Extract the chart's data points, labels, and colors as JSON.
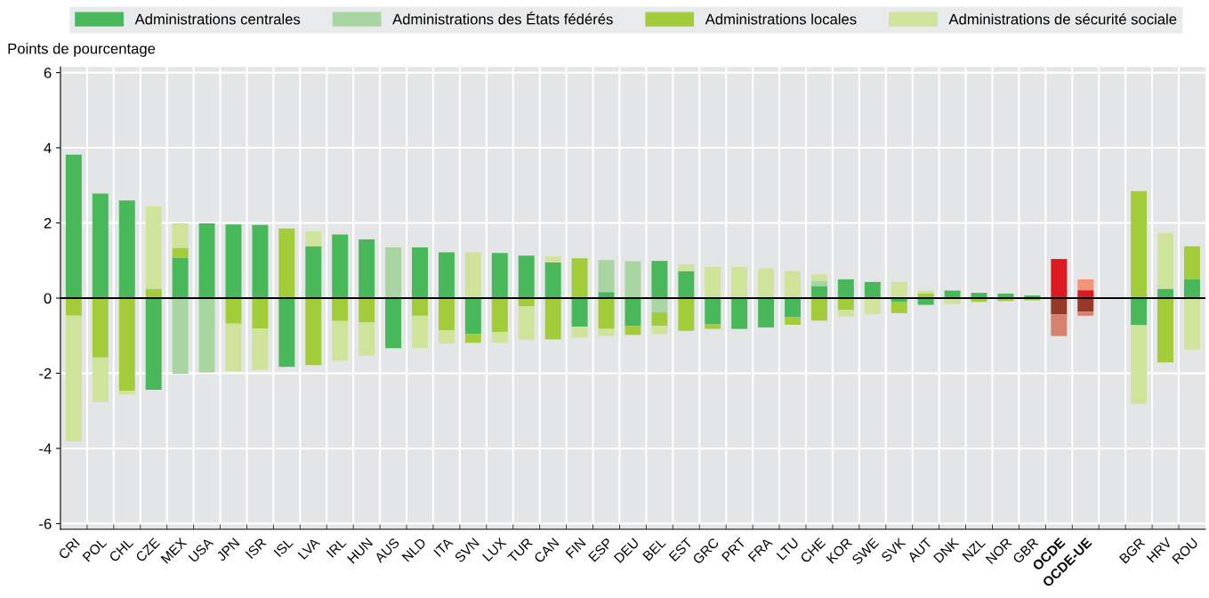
{
  "chart_data": {
    "type": "bar",
    "stacked": true,
    "ylabel": "Points de pourcentage",
    "categories": [
      "CRI",
      "POL",
      "CHL",
      "CZE",
      "MEX",
      "USA",
      "JPN",
      "ISR",
      "ISL",
      "LVA",
      "IRL",
      "HUN",
      "AUS",
      "NLD",
      "ITA",
      "SVN",
      "LUX",
      "TUR",
      "CAN",
      "FIN",
      "ESP",
      "DEU",
      "BEL",
      "EST",
      "GRC",
      "PRT",
      "FRA",
      "LTU",
      "CHE",
      "KOR",
      "SWE",
      "SVK",
      "AUT",
      "DNK",
      "NZL",
      "NOR",
      "GBR",
      "OCDE",
      "OCDE-UE",
      null,
      "BGR",
      "HRV",
      "ROU"
    ],
    "series": [
      {
        "name": "Administrations centrales",
        "color": "#48b85a",
        "colors": [
          "#48b85a",
          "#48b85a",
          "#48b85a",
          "#48b85a",
          "#48b85a",
          "#48b85a",
          "#48b85a",
          "#48b85a",
          "#48b85a",
          "#48b85a",
          "#48b85a",
          "#48b85a",
          "#48b85a",
          "#48b85a",
          "#48b85a",
          "#48b85a",
          "#48b85a",
          "#48b85a",
          "#48b85a",
          "#48b85a",
          "#48b85a",
          "#48b85a",
          "#48b85a",
          "#48b85a",
          "#48b85a",
          "#48b85a",
          "#48b85a",
          "#48b85a",
          "#48b85a",
          "#48b85a",
          "#48b85a",
          "#48b85a",
          "#48b85a",
          "#48b85a",
          "#48b85a",
          "#48b85a",
          "#48b85a",
          "#dd1a21",
          "#dd1a21",
          "#48b85a",
          "#48b85a",
          "#48b85a",
          "#48b85a"
        ],
        "values": [
          3.82,
          2.78,
          2.6,
          -2.44,
          1.08,
          1.99,
          1.96,
          1.95,
          -1.83,
          1.38,
          1.69,
          1.56,
          -1.33,
          1.35,
          1.22,
          -0.95,
          1.2,
          1.13,
          0.95,
          -0.76,
          0.16,
          -0.74,
          0.99,
          0.72,
          -0.7,
          -0.82,
          -0.78,
          -0.51,
          0.32,
          0.5,
          0.43,
          -0.1,
          -0.18,
          0.2,
          0.14,
          0.12,
          0.07,
          1.04,
          0.21,
          null,
          -0.72,
          0.25,
          0.5
        ]
      },
      {
        "name": "Administrations des États fédérés",
        "color": "#a8d5a2",
        "colors": [
          "#a8d5a2",
          "#a8d5a2",
          "#a8d5a2",
          "#a8d5a2",
          "#a8d5a2",
          "#a8d5a2",
          "#a8d5a2",
          "#a8d5a2",
          "#a8d5a2",
          "#a8d5a2",
          "#a8d5a2",
          "#a8d5a2",
          "#a8d5a2",
          "#a8d5a2",
          "#a8d5a2",
          "#a8d5a2",
          "#a8d5a2",
          "#a8d5a2",
          "#a8d5a2",
          "#a8d5a2",
          "#a8d5a2",
          "#a8d5a2",
          "#a8d5a2",
          "#a8d5a2",
          "#a8d5a2",
          "#a8d5a2",
          "#a8d5a2",
          "#a8d5a2",
          "#a8d5a2",
          "#a8d5a2",
          "#a8d5a2",
          "#a8d5a2",
          "#a8d5a2",
          "#a8d5a2",
          "#a8d5a2",
          "#a8d5a2",
          "#a8d5a2",
          "#f4957a",
          "#f4957a",
          "#a8d5a2",
          "#a8d5a2",
          "#a8d5a2",
          "#a8d5a2"
        ],
        "values": [
          null,
          null,
          null,
          null,
          -2.01,
          -1.98,
          null,
          null,
          null,
          null,
          null,
          null,
          1.35,
          null,
          null,
          null,
          null,
          null,
          null,
          null,
          0.85,
          0.98,
          -0.38,
          null,
          null,
          null,
          null,
          null,
          0.13,
          null,
          null,
          null,
          null,
          null,
          null,
          null,
          null,
          null,
          0.29,
          null,
          null,
          null,
          null
        ]
      },
      {
        "name": "Administrations locales",
        "color": "#a3cc3a",
        "colors": [
          "#a3cc3a",
          "#a3cc3a",
          "#a3cc3a",
          "#a3cc3a",
          "#a3cc3a",
          "#a3cc3a",
          "#a3cc3a",
          "#a3cc3a",
          "#a3cc3a",
          "#a3cc3a",
          "#a3cc3a",
          "#a3cc3a",
          "#a3cc3a",
          "#a3cc3a",
          "#a3cc3a",
          "#a3cc3a",
          "#a3cc3a",
          "#a3cc3a",
          "#a3cc3a",
          "#a3cc3a",
          "#a3cc3a",
          "#a3cc3a",
          "#a3cc3a",
          "#a3cc3a",
          "#a3cc3a",
          "#a3cc3a",
          "#a3cc3a",
          "#a3cc3a",
          "#a3cc3a",
          "#a3cc3a",
          "#a3cc3a",
          "#a3cc3a",
          "#a3cc3a",
          "#a3cc3a",
          "#a3cc3a",
          "#a3cc3a",
          "#a3cc3a",
          "#953a28",
          "#953a28",
          "#a3cc3a",
          "#a3cc3a",
          "#a3cc3a",
          "#a3cc3a"
        ],
        "values": [
          -0.47,
          -1.58,
          -2.47,
          0.25,
          0.26,
          null,
          -0.68,
          -0.81,
          1.85,
          -1.78,
          -0.61,
          -0.65,
          null,
          -0.47,
          -0.86,
          -0.24,
          -0.9,
          -0.22,
          -1.1,
          1.06,
          -0.82,
          -0.24,
          -0.36,
          -0.87,
          -0.12,
          null,
          null,
          -0.2,
          -0.6,
          -0.31,
          null,
          -0.3,
          0.13,
          null,
          -0.1,
          -0.08,
          -0.06,
          -0.43,
          -0.36,
          null,
          2.85,
          -1.71,
          0.88
        ]
      },
      {
        "name": "Administrations de sécurité sociale",
        "color": "#d0e39a",
        "colors": [
          "#d0e39a",
          "#d0e39a",
          "#d0e39a",
          "#d0e39a",
          "#d0e39a",
          "#d0e39a",
          "#d0e39a",
          "#d0e39a",
          "#d0e39a",
          "#d0e39a",
          "#d0e39a",
          "#d0e39a",
          "#d0e39a",
          "#d0e39a",
          "#d0e39a",
          "#d0e39a",
          "#d0e39a",
          "#d0e39a",
          "#d0e39a",
          "#d0e39a",
          "#d0e39a",
          "#d0e39a",
          "#d0e39a",
          "#d0e39a",
          "#d0e39a",
          "#d0e39a",
          "#d0e39a",
          "#d0e39a",
          "#d0e39a",
          "#d0e39a",
          "#d0e39a",
          "#d0e39a",
          "#d0e39a",
          "#d0e39a",
          "#d0e39a",
          "#d0e39a",
          "#d0e39a",
          "#d78270",
          "#d78270",
          "#d0e39a",
          "#d0e39a",
          "#d0e39a",
          "#d0e39a"
        ],
        "values": [
          -3.34,
          -1.19,
          -0.1,
          2.19,
          0.65,
          null,
          -1.26,
          -1.1,
          null,
          0.4,
          -1.06,
          -0.88,
          null,
          -0.86,
          -0.35,
          1.22,
          -0.29,
          -0.89,
          0.16,
          -0.29,
          -0.19,
          null,
          -0.22,
          0.18,
          0.83,
          0.83,
          0.79,
          0.72,
          0.18,
          -0.18,
          -0.42,
          0.43,
          0.07,
          -0.16,
          null,
          null,
          null,
          -0.58,
          -0.11,
          null,
          -2.1,
          1.47,
          -1.37
        ]
      }
    ],
    "ylim": [
      -6.15,
      6.15
    ],
    "yticks": [
      -6,
      -4,
      -2,
      0,
      2,
      4,
      6
    ],
    "grid": true,
    "legend": "top",
    "ref_lines": [
      {
        "axis": "y",
        "value": 0,
        "color": "#000000"
      }
    ]
  }
}
